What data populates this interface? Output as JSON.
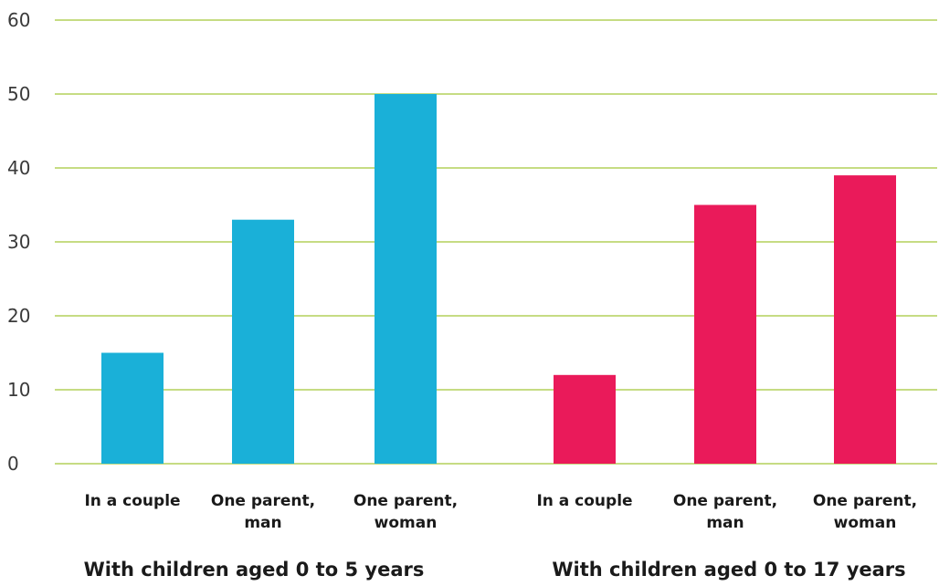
{
  "chart_data": {
    "type": "bar",
    "ylim": [
      0,
      60
    ],
    "yticks": [
      "0",
      "10",
      "20",
      "30",
      "40",
      "50",
      "60"
    ],
    "grid": true,
    "colors": {
      "grid": "#a4c639",
      "group1": "#1ab0d8",
      "group2": "#ea1a5a"
    },
    "groups": [
      {
        "label": "With children aged 0 to 5 years",
        "color": "#1ab0d8",
        "categories": [
          [
            "In a couple"
          ],
          [
            "One parent,",
            "man"
          ],
          [
            "One parent,",
            "woman"
          ]
        ],
        "values": [
          15,
          33,
          50
        ]
      },
      {
        "label": "With children aged 0 to 17 years",
        "color": "#ea1a5a",
        "categories": [
          [
            "In a couple"
          ],
          [
            "One parent,",
            "man"
          ],
          [
            "One parent,",
            "woman"
          ]
        ],
        "values": [
          12,
          35,
          39
        ]
      }
    ]
  }
}
